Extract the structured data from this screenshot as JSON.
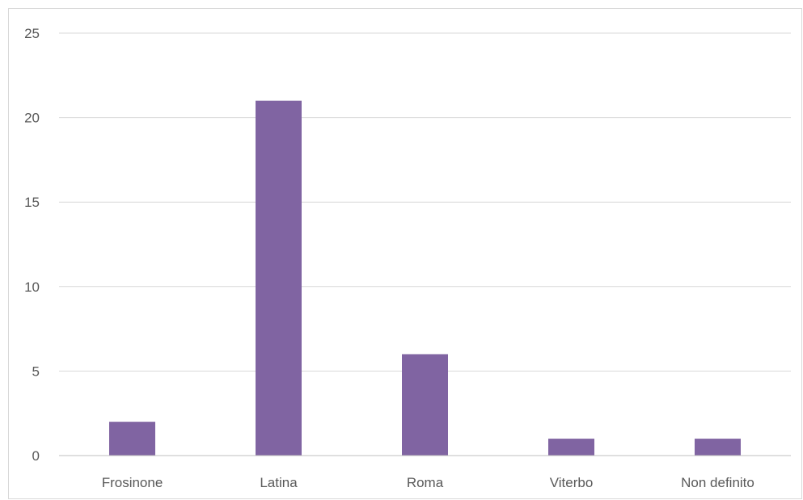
{
  "chart_data": {
    "type": "bar",
    "categories": [
      "Frosinone",
      "Latina",
      "Roma",
      "Viterbo",
      "Non definito"
    ],
    "series": [
      {
        "values": [
          2,
          21,
          6,
          1,
          1
        ]
      }
    ],
    "title": "",
    "xlabel": "",
    "ylabel": "",
    "ylim": [
      0,
      25
    ],
    "yticks": [
      "0",
      "5",
      "10",
      "15",
      "20",
      "25"
    ],
    "grid": true,
    "legend": "none",
    "bar_color": "#8064A2",
    "grid_color": "#d9d9d9",
    "axis_color": "#bfbfbf",
    "text_color": "#595959"
  }
}
